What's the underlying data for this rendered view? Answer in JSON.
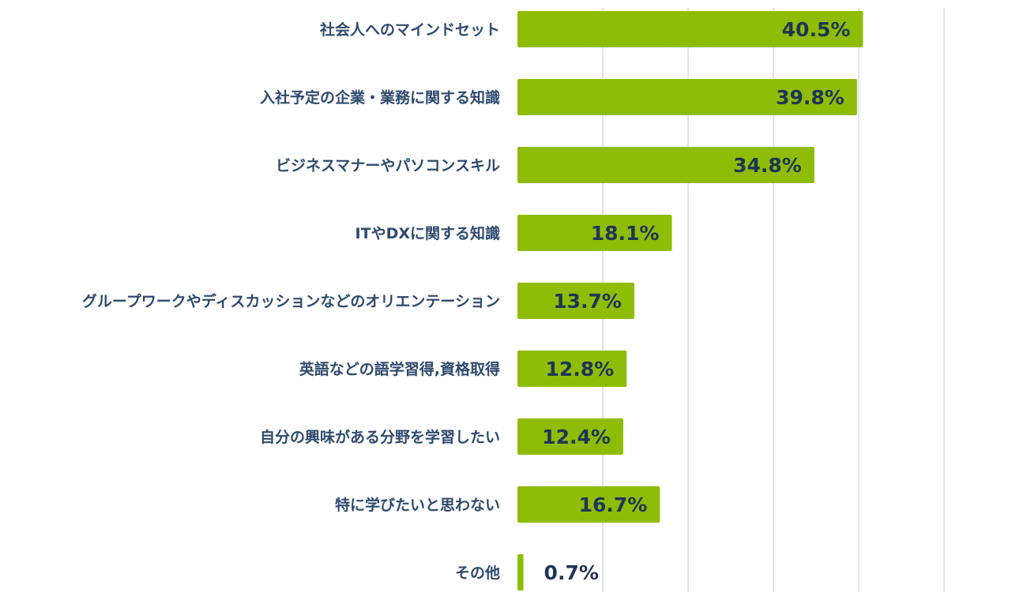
{
  "chart_data": {
    "type": "bar",
    "orientation": "horizontal",
    "title": "",
    "xlabel": "",
    "ylabel": "",
    "xlim": [
      0,
      50
    ],
    "grid": true,
    "value_format": "{v}%",
    "categories": [
      "社会人へのマインドセット",
      "入社予定の企業・業務に関する知識",
      "ビジネスマナーやパソコンスキル",
      "ITやDXに関する知識",
      "グループワークやディスカッションなどのオリエンテーション",
      "英語などの語学習得,資格取得",
      "自分の興味がある分野を学習したい",
      "特に学びたいと思わない",
      "その他"
    ],
    "values": [
      40.5,
      39.8,
      34.8,
      18.1,
      13.7,
      12.8,
      12.4,
      16.7,
      0.7
    ],
    "value_labels": [
      "40.5%",
      "39.8%",
      "34.8%",
      "18.1%",
      "13.7%",
      "12.8%",
      "12.4%",
      "16.7%",
      "0.7%"
    ],
    "bar_color": "#8fbc06",
    "label_color": "#2f4a6e",
    "value_label_color": "#1f3556",
    "grid_color": "#dfe5ee"
  }
}
